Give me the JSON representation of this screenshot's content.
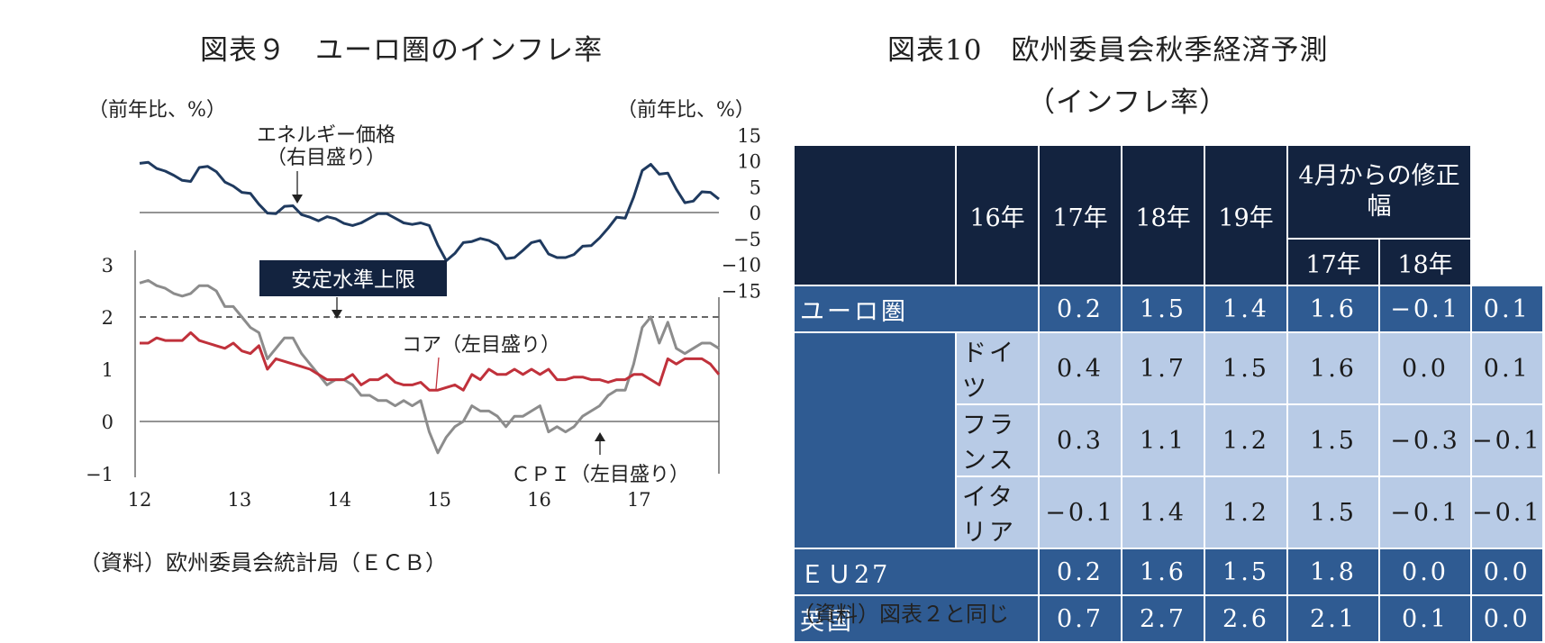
{
  "left": {
    "title": "図表９　ユーロ圏のインフレ率",
    "left_unit": "（前年比、%）",
    "right_unit": "（前年比、%）",
    "source": "（資料）欧州委員会統計局（ＥＣＢ）"
  },
  "right": {
    "title_line1": "図表10　欧州委員会秋季経済予測",
    "title_line2": "（インフレ率）",
    "source": "（資料）図表２と同じ",
    "header": {
      "years": [
        "16年",
        "17年",
        "18年",
        "19年"
      ],
      "revision": "4月からの修正幅",
      "rev_years": [
        "17年",
        "18年"
      ]
    },
    "rows": [
      {
        "label": "ユーロ圏",
        "indent": false,
        "values": [
          "0.2",
          "1.5",
          "1.4",
          "1.6",
          "−0.1",
          "0.1"
        ]
      },
      {
        "label": "ドイツ",
        "indent": true,
        "values": [
          "0.4",
          "1.7",
          "1.5",
          "1.6",
          "0.0",
          "0.1"
        ]
      },
      {
        "label": "フランス",
        "indent": true,
        "values": [
          "0.3",
          "1.1",
          "1.2",
          "1.5",
          "−0.3",
          "−0.1"
        ]
      },
      {
        "label": "イタリア",
        "indent": true,
        "values": [
          "−0.1",
          "1.4",
          "1.2",
          "1.5",
          "−0.1",
          "−0.1"
        ]
      },
      {
        "label": "ＥＵ27",
        "indent": false,
        "values": [
          "0.2",
          "1.6",
          "1.5",
          "1.8",
          "0.0",
          "0.0"
        ]
      },
      {
        "label": "英国",
        "indent": false,
        "values": [
          "0.7",
          "2.7",
          "2.6",
          "2.1",
          "0.1",
          "0.0"
        ]
      }
    ]
  },
  "chart_data": {
    "type": "line",
    "title": "図表９　ユーロ圏のインフレ率",
    "x_ticks": [
      "12",
      "13",
      "14",
      "15",
      "16",
      "17"
    ],
    "x_range": [
      2012.0,
      2017.8
    ],
    "left_axis": {
      "ticks": [
        "3",
        "2",
        "1",
        "0",
        "−1"
      ],
      "range": [
        -1,
        3.2
      ]
    },
    "right_axis": {
      "ticks": [
        "15",
        "10",
        "5",
        "0",
        "−5",
        "−10",
        "−15"
      ],
      "range": [
        -15,
        15
      ]
    },
    "target_label": "安定水準上限",
    "target_value": 2,
    "series": [
      {
        "name": "エネルギー価格",
        "annotation": [
          "エネルギー価格",
          "（右目盛り）"
        ],
        "axis": "right",
        "color": "#1f3a5f",
        "values": [
          9.5,
          9.7,
          8.5,
          8.0,
          7.2,
          6.2,
          6.0,
          8.7,
          8.9,
          7.9,
          5.9,
          5.1,
          3.9,
          3.7,
          1.6,
          -0.1,
          -0.2,
          1.2,
          1.3,
          -0.4,
          -0.9,
          -1.6,
          -0.8,
          -1.2,
          -2.1,
          -2.5,
          -2.0,
          -1.1,
          -0.2,
          -0.2,
          -1.1,
          -2.0,
          -2.3,
          -2.0,
          -2.5,
          -6.3,
          -9.3,
          -7.9,
          -5.8,
          -5.6,
          -5.0,
          -5.4,
          -6.3,
          -8.9,
          -8.7,
          -7.3,
          -5.8,
          -5.4,
          -8.0,
          -8.7,
          -8.7,
          -8.1,
          -6.5,
          -6.4,
          -4.9,
          -3.0,
          -0.9,
          -1.1,
          3.0,
          8.1,
          9.3,
          7.4,
          7.6,
          4.5,
          1.9,
          2.2,
          4.0,
          3.9,
          2.6
        ]
      },
      {
        "name": "ＣＰＩ",
        "annotation": [
          "ＣＰＩ（左目盛り）"
        ],
        "axis": "left",
        "color": "#8c8c8c",
        "values": [
          2.65,
          2.7,
          2.6,
          2.55,
          2.45,
          2.4,
          2.45,
          2.6,
          2.6,
          2.5,
          2.2,
          2.2,
          2.0,
          1.8,
          1.7,
          1.2,
          1.4,
          1.6,
          1.6,
          1.3,
          1.1,
          0.9,
          0.7,
          0.8,
          0.8,
          0.7,
          0.5,
          0.5,
          0.4,
          0.4,
          0.3,
          0.4,
          0.3,
          0.4,
          -0.2,
          -0.6,
          -0.3,
          -0.1,
          0.0,
          0.3,
          0.2,
          0.2,
          0.1,
          -0.1,
          0.1,
          0.1,
          0.2,
          0.3,
          -0.2,
          -0.1,
          -0.2,
          -0.1,
          0.1,
          0.2,
          0.3,
          0.5,
          0.6,
          0.6,
          1.1,
          1.8,
          2.0,
          1.5,
          1.9,
          1.4,
          1.3,
          1.4,
          1.5,
          1.5,
          1.4
        ]
      },
      {
        "name": "コア",
        "annotation": [
          "コア（左目盛り）"
        ],
        "axis": "left",
        "color": "#c0313b",
        "values": [
          1.5,
          1.5,
          1.6,
          1.55,
          1.55,
          1.55,
          1.7,
          1.55,
          1.5,
          1.45,
          1.4,
          1.5,
          1.35,
          1.3,
          1.45,
          1.0,
          1.2,
          1.15,
          1.1,
          1.05,
          1.0,
          0.9,
          0.8,
          0.8,
          0.8,
          0.9,
          0.7,
          0.8,
          0.8,
          0.9,
          0.75,
          0.7,
          0.7,
          0.75,
          0.6,
          0.6,
          0.65,
          0.7,
          0.6,
          0.9,
          0.8,
          1.0,
          0.9,
          0.9,
          1.0,
          0.9,
          1.0,
          0.9,
          1.0,
          0.8,
          0.8,
          0.85,
          0.85,
          0.8,
          0.8,
          0.75,
          0.8,
          0.8,
          0.9,
          0.9,
          0.8,
          0.7,
          1.2,
          1.1,
          1.2,
          1.2,
          1.2,
          1.1,
          0.9
        ]
      }
    ]
  }
}
